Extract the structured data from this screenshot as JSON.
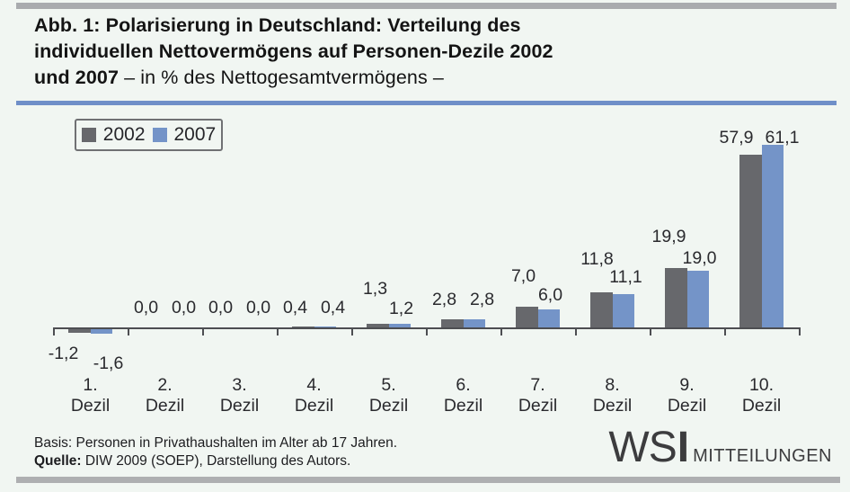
{
  "title": {
    "line1": "Abb. 1: Polarisierung in Deutschland: Verteilung des",
    "line2": "individuellen Nettovermögens auf Personen-Dezile 2002",
    "line3_bold": "und 2007",
    "line3_normal": "– in % des Nettogesamtvermögens –"
  },
  "chart_data": {
    "type": "bar",
    "title": "Abb. 1: Polarisierung in Deutschland: Verteilung des individuellen Nettovermögens auf Personen-Dezile 2002 und 2007 – in % des Nettogesamtvermögens –",
    "categories": [
      "1. Dezil",
      "2. Dezil",
      "3. Dezil",
      "4. Dezil",
      "5. Dezil",
      "6. Dezil",
      "7. Dezil",
      "8. Dezil",
      "9. Dezil",
      "10. Dezil"
    ],
    "series": [
      {
        "name": "2002",
        "color": "#67686c",
        "values": [
          -1.2,
          0.0,
          0.0,
          0.4,
          1.3,
          2.8,
          7.0,
          11.8,
          19.9,
          57.9
        ]
      },
      {
        "name": "2007",
        "color": "#7494c8",
        "values": [
          -1.6,
          0.0,
          0.0,
          0.4,
          1.2,
          2.8,
          6.0,
          11.1,
          19.0,
          61.1
        ]
      }
    ],
    "value_labels": [
      [
        "-1,2",
        "-1,6"
      ],
      [
        "0,0",
        "0,0"
      ],
      [
        "0,0",
        "0,0"
      ],
      [
        "0,4",
        "0,4"
      ],
      [
        "1,3",
        "1,2"
      ],
      [
        "2,8",
        "2,8"
      ],
      [
        "7,0",
        "6,0"
      ],
      [
        "11,8",
        "11,1"
      ],
      [
        "19,9",
        "19,0"
      ],
      [
        "57,9",
        "61,1"
      ]
    ],
    "xlabel": "",
    "ylabel": "% des Nettogesamtvermögens",
    "ylim": [
      -2,
      62
    ],
    "grid": false,
    "legend_position": "top-left",
    "value_label_format": "decimal-comma",
    "y_axis_shown": false
  },
  "footer": {
    "basis": "Basis: Personen in Privathaushalten im Alter ab 17 Jahren.",
    "quelle_label": "Quelle:",
    "quelle_text": "DIW 2009 (SOEP), Darstellung des Autors."
  },
  "logo": {
    "ws": "WS",
    "i": "I",
    "sub": "MITTEILUNGEN"
  },
  "colors": {
    "background": "#f1f6f2",
    "top_rule": "#a9abae",
    "title_underline": "#6f8fc8",
    "bar_2002": "#67686c",
    "bar_2007": "#7494c8",
    "axis": "#4d4e52",
    "bottom_rule": "#aeafb1"
  }
}
